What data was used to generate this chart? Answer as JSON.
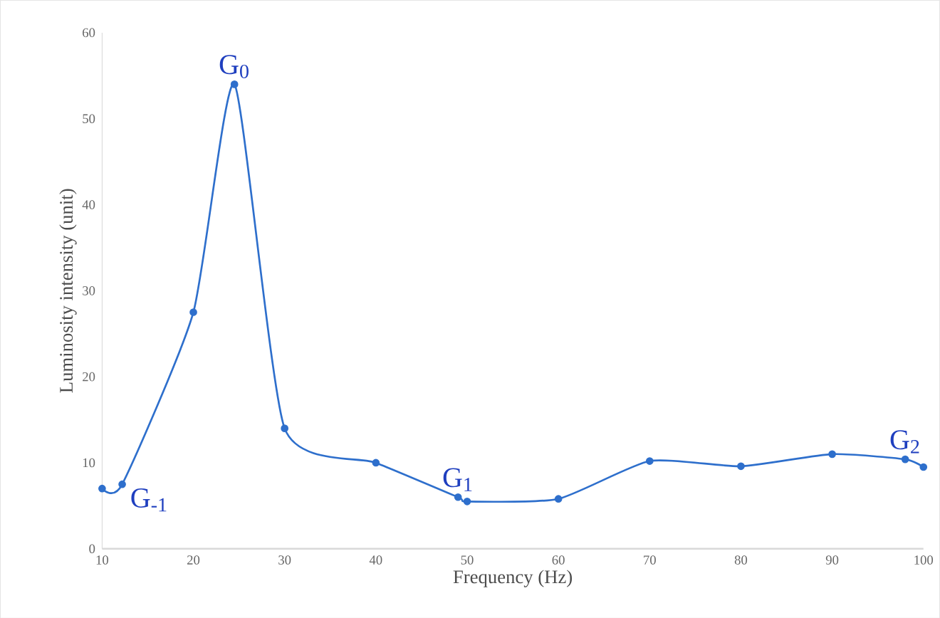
{
  "chart_data": {
    "type": "line",
    "xlabel": "Frequency (Hz)",
    "ylabel": "Luminosity intensity (unit)",
    "x": [
      10,
      12.2,
      20,
      24.5,
      30,
      40,
      49,
      50,
      60,
      70,
      80,
      90,
      98,
      100
    ],
    "series": [
      {
        "color": "#2e6fcc",
        "values": [
          7,
          7.5,
          27.5,
          54,
          14,
          10,
          6,
          5.5,
          5.8,
          10.2,
          9.6,
          11,
          10.4,
          9.5
        ]
      }
    ],
    "marker": "circle",
    "line_style": "solid",
    "xlim": [
      10,
      100
    ],
    "xticks": [
      10,
      20,
      30,
      40,
      50,
      60,
      70,
      80,
      90,
      100
    ],
    "ylim": [
      0,
      60
    ],
    "yticks": [
      0,
      10,
      20,
      30,
      40,
      50,
      60
    ],
    "annotations": [
      {
        "text": "G$_{-1}$",
        "x": 12.2,
        "y": 7.5
      },
      {
        "text": "G$_{0}$",
        "x": 24.5,
        "y": 54
      },
      {
        "text": "G$_{1}$",
        "x": 49,
        "y": 6
      },
      {
        "text": "G$_{2}$",
        "x": 98,
        "y": 10.4
      }
    ]
  }
}
